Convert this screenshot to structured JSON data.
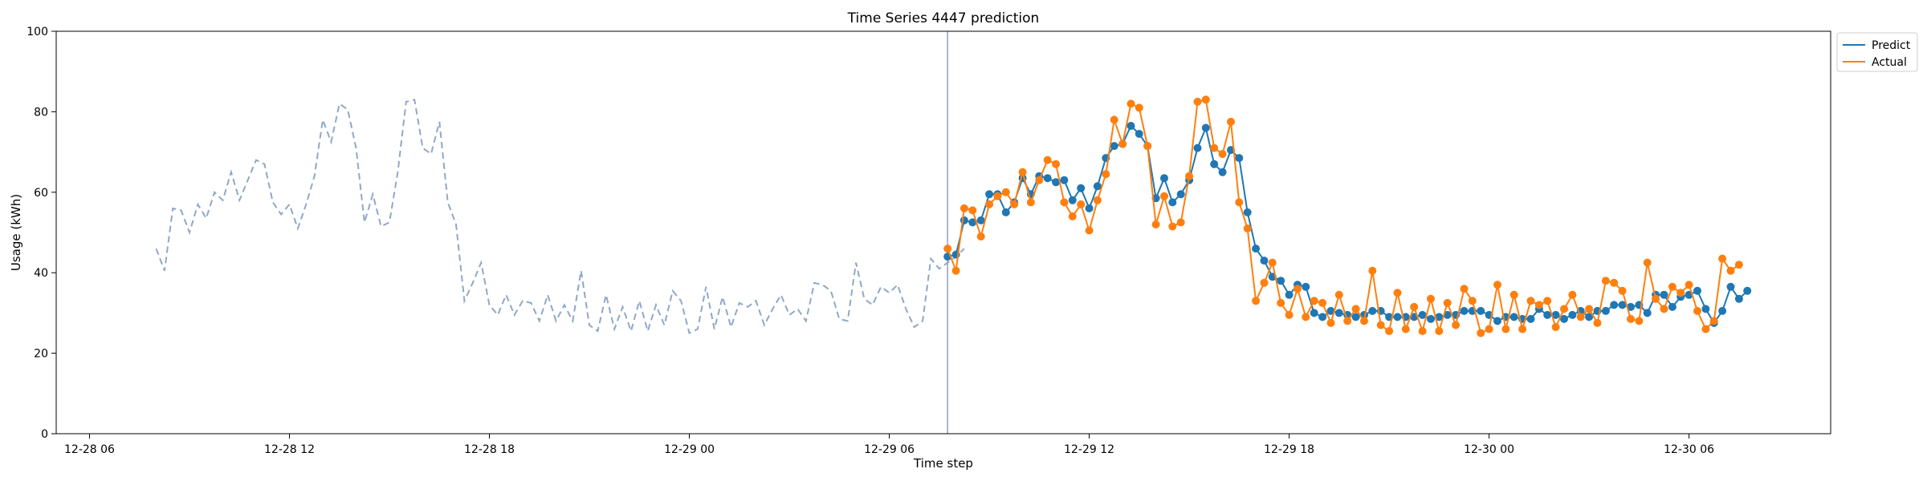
{
  "chart_data": {
    "type": "line",
    "title": "Time Series 4447 prediction",
    "xlabel": "Time step",
    "ylabel": "Usage (kWh)",
    "ylim": [
      0,
      100
    ],
    "yticks": [
      0,
      20,
      40,
      60,
      80,
      100
    ],
    "xlim": [
      "12-28 05:00",
      "12-30 10:15"
    ],
    "xticks": [
      "12-28 06",
      "12-28 12",
      "12-28 18",
      "12-29 00",
      "12-29 06",
      "12-29 12",
      "12-29 18",
      "12-30 00",
      "12-30 06"
    ],
    "grid": false,
    "legend_position": "upper-right-outside",
    "forecast_start": "12-29 07:45",
    "colors": {
      "history": "#8fa8c8",
      "predict": "#1f77b4",
      "actual": "#ff7f0e",
      "divider": "#8a9fc9"
    },
    "history": {
      "start": "12-28 08:00",
      "step_minutes": 15,
      "values": [
        46,
        40.5,
        56,
        55.5,
        50,
        57,
        53.5,
        60,
        58,
        65,
        58,
        63,
        68,
        67,
        57.5,
        54.5,
        57,
        51,
        57,
        64,
        78,
        72.5,
        82,
        80.5,
        71,
        52.5,
        59.5,
        51.5,
        52.5,
        65,
        82.5,
        83,
        71,
        69.5,
        77.5,
        57.5,
        52,
        33,
        37.5,
        42.5,
        32,
        29.5,
        34.5,
        29.5,
        33,
        32.5,
        28,
        34.5,
        28,
        32,
        28,
        40.5,
        27,
        25.5,
        34.5,
        26,
        31.5,
        25.5,
        33,
        25.5,
        32,
        27,
        35.5,
        33,
        25,
        26,
        36.5,
        26,
        34,
        26.5,
        32.5,
        31.5,
        33,
        27,
        31,
        34.5,
        29.5,
        31,
        28,
        37.5,
        37,
        35.5,
        28.5,
        28,
        42.5,
        33.5,
        32,
        36.5,
        35,
        37,
        31,
        26.5,
        28,
        43.5,
        41,
        42.5,
        44,
        46
      ]
    },
    "series": [
      {
        "name": "Predict",
        "start": "12-29 07:45",
        "step_minutes": 15,
        "values": [
          44,
          44.5,
          53,
          52.5,
          53,
          59.5,
          59.5,
          55,
          57.5,
          63.5,
          59.5,
          64,
          63.5,
          62.5,
          63,
          58,
          61,
          56,
          61.5,
          68.5,
          71.5,
          72,
          76.5,
          74.5,
          71.5,
          58.5,
          63.5,
          57.5,
          59.5,
          63,
          71,
          76,
          67,
          65,
          70.5,
          68.5,
          55,
          46,
          43,
          39,
          38,
          34.5,
          37,
          36.5,
          30,
          29,
          30.5,
          30,
          29.5,
          29,
          29.5,
          30.5,
          30.5,
          29,
          29,
          29,
          29,
          29.5,
          28.5,
          29,
          29.5,
          29.5,
          30.5,
          30.5,
          30.5,
          29.5,
          28,
          29,
          29,
          28.5,
          28.5,
          31,
          29.5,
          29.5,
          28.5,
          29.5,
          30.5,
          29,
          30.5,
          30.5,
          32,
          32,
          31.5,
          32,
          30,
          34.5,
          34.5,
          31.5,
          34,
          34.5,
          35.5,
          31,
          27.5,
          30.5,
          36.5,
          33.5,
          35.5
        ]
      },
      {
        "name": "Actual",
        "start": "12-29 07:45",
        "step_minutes": 15,
        "values": [
          46,
          40.5,
          56,
          55.5,
          49,
          57,
          59,
          60,
          57,
          65,
          57.5,
          63,
          68,
          67,
          57.5,
          54,
          57,
          50.5,
          58,
          64.5,
          78,
          72,
          82,
          81,
          71.5,
          52,
          59,
          51.5,
          52.5,
          64,
          82.5,
          83,
          71,
          69.5,
          77.5,
          57.5,
          51,
          33,
          37.5,
          42.5,
          32.5,
          29.5,
          36,
          29,
          33,
          32.5,
          27.5,
          34.5,
          28,
          31,
          28,
          40.5,
          27,
          25.5,
          35,
          26,
          31.5,
          25.5,
          33.5,
          25.5,
          32.5,
          27,
          36,
          33,
          25,
          26,
          37,
          26,
          34.5,
          26,
          33,
          32,
          33,
          26.5,
          31,
          34.5,
          29,
          31,
          27.5,
          38,
          37.5,
          35.5,
          28.5,
          28,
          42.5,
          33.5,
          31,
          36.5,
          35,
          37,
          30.5,
          26,
          28,
          43.5,
          40.5,
          42
        ]
      }
    ],
    "legend": [
      "Predict",
      "Actual"
    ]
  }
}
